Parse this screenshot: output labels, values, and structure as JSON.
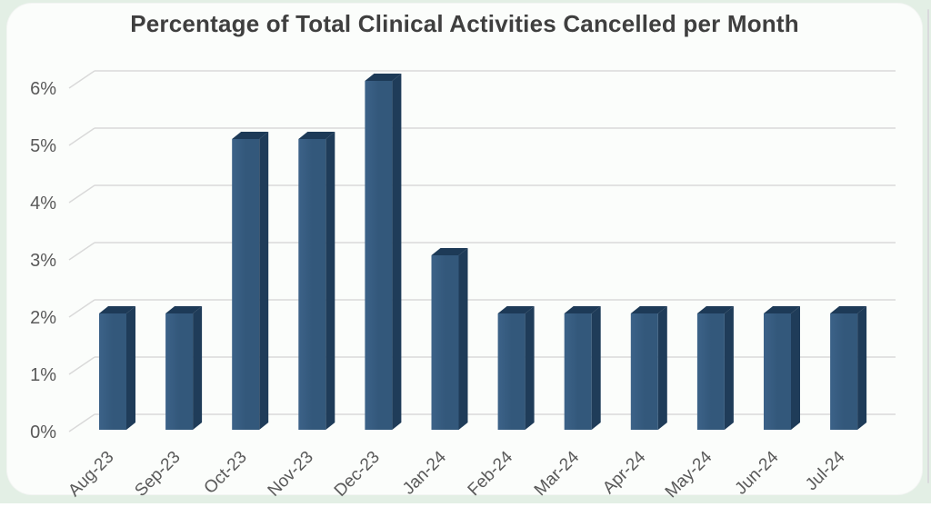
{
  "window": {
    "background_color": "#E3EFE5",
    "card_background_color": "#FBFDFB"
  },
  "chart_data": {
    "type": "bar",
    "style": "3d-column",
    "title": "Percentage of Total Clinical Activities Cancelled per Month",
    "categories": [
      "Aug-23",
      "Sep-23",
      "Oct-23",
      "Nov-23",
      "Dec-23",
      "Jan-24",
      "Feb-24",
      "Mar-24",
      "Apr-24",
      "May-24",
      "Jun-24",
      "Jul-24"
    ],
    "values": [
      2,
      2,
      5,
      5,
      6,
      3,
      2,
      2,
      2,
      2,
      2,
      2
    ],
    "unit": "%",
    "xlabel": "",
    "ylabel": "",
    "ylim": [
      0,
      6
    ],
    "yticks": [
      "0%",
      "1%",
      "2%",
      "3%",
      "4%",
      "5%",
      "6%"
    ],
    "grid": true,
    "legend": "none",
    "colors": {
      "bar_front": "#33587B",
      "bar_front_light": "#3C6288",
      "bar_side": "#1F3C59",
      "bar_top": "#1D3A57",
      "gridline": "#D9D9D9",
      "tick_label": "#595959",
      "title": "#3F3F3F"
    }
  }
}
